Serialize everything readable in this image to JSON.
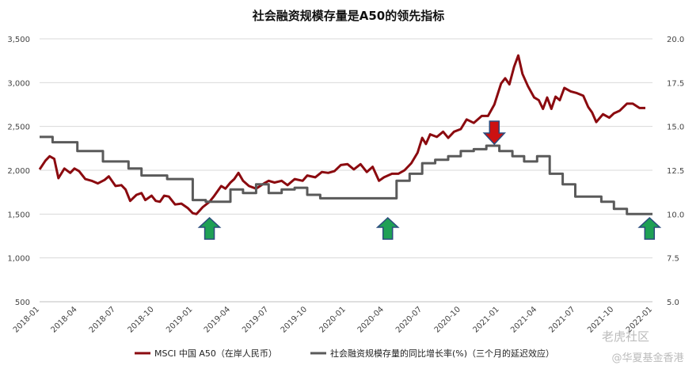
{
  "chart_data": {
    "type": "line",
    "title": "社会融资规模存量是A50的领先指标",
    "x_ticks": [
      "2018-01",
      "2018-04",
      "2018-07",
      "2018-10",
      "2019-01",
      "2019-04",
      "2019-07",
      "2019-10",
      "2020-01",
      "2020-04",
      "2020-07",
      "2020-10",
      "2021-01",
      "2021-04",
      "2021-07",
      "2021-10",
      "2022-01"
    ],
    "y_left": {
      "ticks": [
        "500",
        "1,000",
        "1,500",
        "2,000",
        "2,500",
        "3,000",
        "3,500"
      ],
      "range": [
        500,
        3500
      ]
    },
    "y_right": {
      "ticks": [
        "5.0",
        "7.5",
        "10.0",
        "12.5",
        "15.0",
        "17.5",
        "20.0"
      ],
      "range": [
        5.0,
        20.0
      ]
    },
    "legend_position": "bottom",
    "grid": "horizontal",
    "series": [
      {
        "name": "MSCI 中国 A50（在岸人民币）",
        "axis": "left",
        "color": "#8b0a0f",
        "points": [
          [
            "2018-01",
            2010
          ],
          [
            "2018-01-15",
            2110
          ],
          [
            "2018-01-25",
            2160
          ],
          [
            "2018-02-05",
            2130
          ],
          [
            "2018-02-15",
            1910
          ],
          [
            "2018-03-01",
            2020
          ],
          [
            "2018-03-15",
            1970
          ],
          [
            "2018-03-25",
            2020
          ],
          [
            "2018-04-05",
            1990
          ],
          [
            "2018-04-20",
            1900
          ],
          [
            "2018-05-05",
            1880
          ],
          [
            "2018-05-20",
            1850
          ],
          [
            "2018-06-05",
            1890
          ],
          [
            "2018-06-15",
            1930
          ],
          [
            "2018-07-01",
            1820
          ],
          [
            "2018-07-15",
            1830
          ],
          [
            "2018-07-25",
            1780
          ],
          [
            "2018-08-05",
            1650
          ],
          [
            "2018-08-20",
            1720
          ],
          [
            "2018-09-01",
            1740
          ],
          [
            "2018-09-10",
            1660
          ],
          [
            "2018-09-25",
            1710
          ],
          [
            "2018-10-05",
            1650
          ],
          [
            "2018-10-15",
            1640
          ],
          [
            "2018-10-25",
            1710
          ],
          [
            "2018-11-05",
            1700
          ],
          [
            "2018-11-20",
            1610
          ],
          [
            "2018-12-05",
            1620
          ],
          [
            "2018-12-20",
            1570
          ],
          [
            "2019-01-01",
            1510
          ],
          [
            "2019-01-10",
            1500
          ],
          [
            "2019-01-25",
            1580
          ],
          [
            "2019-02-10",
            1640
          ],
          [
            "2019-02-20",
            1700
          ],
          [
            "2019-03-01",
            1760
          ],
          [
            "2019-03-10",
            1820
          ],
          [
            "2019-03-20",
            1790
          ],
          [
            "2019-04-01",
            1860
          ],
          [
            "2019-04-10",
            1900
          ],
          [
            "2019-04-20",
            1970
          ],
          [
            "2019-05-01",
            1880
          ],
          [
            "2019-05-15",
            1820
          ],
          [
            "2019-06-01",
            1790
          ],
          [
            "2019-06-20",
            1850
          ],
          [
            "2019-07-01",
            1880
          ],
          [
            "2019-07-15",
            1860
          ],
          [
            "2019-08-01",
            1880
          ],
          [
            "2019-08-15",
            1830
          ],
          [
            "2019-09-01",
            1900
          ],
          [
            "2019-09-20",
            1880
          ],
          [
            "2019-10-01",
            1940
          ],
          [
            "2019-10-20",
            1920
          ],
          [
            "2019-11-05",
            1980
          ],
          [
            "2019-11-20",
            1970
          ],
          [
            "2019-12-05",
            1990
          ],
          [
            "2019-12-20",
            2060
          ],
          [
            "2020-01-05",
            2070
          ],
          [
            "2020-01-20",
            2010
          ],
          [
            "2020-02-05",
            2070
          ],
          [
            "2020-02-20",
            1980
          ],
          [
            "2020-03-05",
            2040
          ],
          [
            "2020-03-20",
            1880
          ],
          [
            "2020-04-01",
            1920
          ],
          [
            "2020-04-20",
            1960
          ],
          [
            "2020-05-05",
            1960
          ],
          [
            "2020-05-20",
            2000
          ],
          [
            "2020-06-05",
            2080
          ],
          [
            "2020-06-20",
            2200
          ],
          [
            "2020-07-01",
            2370
          ],
          [
            "2020-07-10",
            2300
          ],
          [
            "2020-07-20",
            2410
          ],
          [
            "2020-08-05",
            2380
          ],
          [
            "2020-08-20",
            2440
          ],
          [
            "2020-09-01",
            2370
          ],
          [
            "2020-09-15",
            2440
          ],
          [
            "2020-10-01",
            2470
          ],
          [
            "2020-10-15",
            2580
          ],
          [
            "2020-11-01",
            2540
          ],
          [
            "2020-11-20",
            2620
          ],
          [
            "2020-12-05",
            2620
          ],
          [
            "2020-12-20",
            2750
          ],
          [
            "2021-01-05",
            2990
          ],
          [
            "2021-01-15",
            3050
          ],
          [
            "2021-01-25",
            2980
          ],
          [
            "2021-02-05",
            3180
          ],
          [
            "2021-02-15",
            3310
          ],
          [
            "2021-02-25",
            3100
          ],
          [
            "2021-03-10",
            2960
          ],
          [
            "2021-03-25",
            2830
          ],
          [
            "2021-04-05",
            2800
          ],
          [
            "2021-04-15",
            2700
          ],
          [
            "2021-04-25",
            2830
          ],
          [
            "2021-05-05",
            2700
          ],
          [
            "2021-05-15",
            2840
          ],
          [
            "2021-05-25",
            2800
          ],
          [
            "2021-06-05",
            2940
          ],
          [
            "2021-06-20",
            2900
          ],
          [
            "2021-07-05",
            2880
          ],
          [
            "2021-07-20",
            2850
          ],
          [
            "2021-08-01",
            2720
          ],
          [
            "2021-08-10",
            2660
          ],
          [
            "2021-08-20",
            2550
          ],
          [
            "2021-09-05",
            2640
          ],
          [
            "2021-09-20",
            2600
          ],
          [
            "2021-10-01",
            2650
          ],
          [
            "2021-10-15",
            2680
          ],
          [
            "2021-11-01",
            2760
          ],
          [
            "2021-11-15",
            2760
          ],
          [
            "2021-12-01",
            2710
          ],
          [
            "2021-12-15",
            2710
          ]
        ]
      },
      {
        "name": "社会融资规模存量的同比增长率(%)（三个月的延迟效应）",
        "axis": "right",
        "color": "#5a5a5a",
        "points": [
          [
            "2018-01",
            14.4
          ],
          [
            "2018-02",
            14.4
          ],
          [
            "2018-02",
            14.1
          ],
          [
            "2018-04",
            14.1
          ],
          [
            "2018-04",
            13.6
          ],
          [
            "2018-05",
            13.6
          ],
          [
            "2018-06",
            13.6
          ],
          [
            "2018-06",
            13.0
          ],
          [
            "2018-07",
            13.0
          ],
          [
            "2018-08",
            13.0
          ],
          [
            "2018-08",
            12.6
          ],
          [
            "2018-09",
            12.6
          ],
          [
            "2018-09",
            12.2
          ],
          [
            "2018-10",
            12.2
          ],
          [
            "2018-11",
            12.2
          ],
          [
            "2018-11",
            12.0
          ],
          [
            "2018-12",
            12.0
          ],
          [
            "2019-01",
            12.0
          ],
          [
            "2019-01",
            10.8
          ],
          [
            "2019-02",
            10.8
          ],
          [
            "2019-02",
            10.7
          ],
          [
            "2019-03",
            10.7
          ],
          [
            "2019-03",
            10.7
          ],
          [
            "2019-04",
            10.7
          ],
          [
            "2019-04",
            11.4
          ],
          [
            "2019-05",
            11.4
          ],
          [
            "2019-05",
            11.2
          ],
          [
            "2019-06",
            11.2
          ],
          [
            "2019-06",
            11.7
          ],
          [
            "2019-07",
            11.7
          ],
          [
            "2019-07",
            11.2
          ],
          [
            "2019-08",
            11.2
          ],
          [
            "2019-08",
            11.4
          ],
          [
            "2019-09",
            11.4
          ],
          [
            "2019-09",
            11.5
          ],
          [
            "2019-10",
            11.5
          ],
          [
            "2019-10",
            11.1
          ],
          [
            "2019-11",
            11.1
          ],
          [
            "2019-11",
            10.9
          ],
          [
            "2019-12",
            10.9
          ],
          [
            "2019-12",
            10.9
          ],
          [
            "2020-01",
            10.9
          ],
          [
            "2020-01",
            10.9
          ],
          [
            "2020-02",
            10.9
          ],
          [
            "2020-02",
            10.9
          ],
          [
            "2020-03",
            10.9
          ],
          [
            "2020-03",
            10.9
          ],
          [
            "2020-04",
            10.9
          ],
          [
            "2020-04",
            10.9
          ],
          [
            "2020-05",
            10.9
          ],
          [
            "2020-05",
            11.9
          ],
          [
            "2020-06",
            11.9
          ],
          [
            "2020-06",
            12.3
          ],
          [
            "2020-07",
            12.3
          ],
          [
            "2020-07",
            12.9
          ],
          [
            "2020-08",
            12.9
          ],
          [
            "2020-08",
            13.1
          ],
          [
            "2020-09",
            13.1
          ],
          [
            "2020-09",
            13.3
          ],
          [
            "2020-10",
            13.3
          ],
          [
            "2020-10",
            13.6
          ],
          [
            "2020-11",
            13.6
          ],
          [
            "2020-11",
            13.7
          ],
          [
            "2020-12",
            13.7
          ],
          [
            "2020-12",
            13.9
          ],
          [
            "2021-01",
            13.9
          ],
          [
            "2021-01",
            13.6
          ],
          [
            "2021-02",
            13.6
          ],
          [
            "2021-02",
            13.3
          ],
          [
            "2021-03",
            13.3
          ],
          [
            "2021-03",
            13.0
          ],
          [
            "2021-04",
            13.0
          ],
          [
            "2021-04",
            13.3
          ],
          [
            "2021-05",
            13.3
          ],
          [
            "2021-05",
            12.3
          ],
          [
            "2021-06",
            12.3
          ],
          [
            "2021-06",
            11.7
          ],
          [
            "2021-07",
            11.7
          ],
          [
            "2021-07",
            11.0
          ],
          [
            "2021-08",
            11.0
          ],
          [
            "2021-09",
            11.0
          ],
          [
            "2021-09",
            10.7
          ],
          [
            "2021-10",
            10.7
          ],
          [
            "2021-10",
            10.3
          ],
          [
            "2021-11",
            10.3
          ],
          [
            "2021-11",
            10.0
          ],
          [
            "2021-12",
            10.0
          ],
          [
            "2022-01",
            10.0
          ]
        ]
      }
    ],
    "annotations": [
      {
        "type": "arrow-up",
        "color": "#1fa055",
        "x": "2019-02-10"
      },
      {
        "type": "arrow-up",
        "color": "#1fa055",
        "x": "2020-04-10"
      },
      {
        "type": "arrow-down",
        "color": "#cc1111",
        "x": "2020-12-20"
      },
      {
        "type": "arrow-up",
        "color": "#1fa055",
        "x": "2021-12-25"
      }
    ]
  },
  "watermarks": [
    "老虎社区",
    "@华夏基金香港"
  ]
}
